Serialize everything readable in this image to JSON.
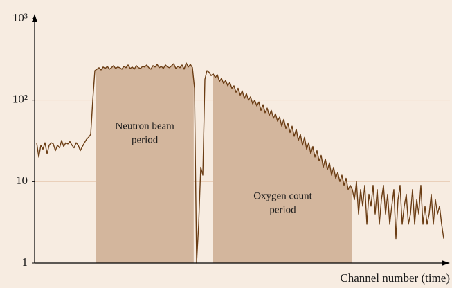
{
  "chart_data": {
    "type": "line",
    "x_label": "Channel number (time)",
    "xlim": [
      0,
      200
    ],
    "ylim": [
      1,
      1000
    ],
    "log_y": true,
    "grid": true,
    "yticks": [
      1,
      10,
      {
        "value": 100,
        "label": "10²"
      },
      {
        "value": 1000,
        "label": "10³"
      }
    ],
    "series": [
      {
        "color": "#6b3d14",
        "x": [
          1,
          2,
          3,
          4,
          5,
          6,
          7,
          8,
          9,
          10,
          11,
          12,
          13,
          14,
          15,
          16,
          17,
          18,
          19,
          20,
          21,
          22,
          23,
          24,
          25,
          26,
          27,
          28,
          29,
          30,
          31,
          32,
          33,
          34,
          35,
          36,
          37,
          38,
          39,
          40,
          41,
          42,
          43,
          44,
          45,
          46,
          47,
          48,
          49,
          50,
          51,
          52,
          53,
          54,
          55,
          56,
          57,
          58,
          59,
          60,
          61,
          62,
          63,
          64,
          65,
          66,
          67,
          68,
          69,
          70,
          71,
          72,
          73,
          74,
          75,
          76,
          77,
          78,
          79,
          80,
          81,
          82,
          83,
          84,
          85,
          86,
          87,
          88,
          89,
          90,
          91,
          92,
          93,
          94,
          95,
          96,
          97,
          98,
          99,
          100,
          101,
          102,
          103,
          104,
          105,
          106,
          107,
          108,
          109,
          110,
          111,
          112,
          113,
          114,
          115,
          116,
          117,
          118,
          119,
          120,
          121,
          122,
          123,
          124,
          125,
          126,
          127,
          128,
          129,
          130,
          131,
          132,
          133,
          134,
          135,
          136,
          137,
          138,
          139,
          140,
          141,
          142,
          143,
          144,
          145,
          146,
          147,
          148,
          149,
          150,
          151,
          152,
          153,
          154,
          155,
          156,
          157,
          158,
          159,
          160,
          161,
          162,
          163,
          164,
          165,
          166,
          167,
          168,
          169,
          170,
          171,
          172,
          173,
          174,
          175,
          176,
          177,
          178,
          179,
          180,
          181,
          182,
          183,
          184,
          185,
          186,
          187,
          188,
          189,
          190,
          191,
          192,
          193,
          194,
          195,
          196,
          197
        ],
        "values": [
          30,
          20,
          28,
          25,
          30,
          22,
          28,
          30,
          29,
          24,
          28,
          26,
          32,
          27,
          30,
          29,
          31,
          28,
          26,
          30,
          28,
          24,
          27,
          30,
          33,
          35,
          38,
          100,
          230,
          240,
          250,
          235,
          255,
          245,
          260,
          240,
          250,
          265,
          245,
          255,
          250,
          240,
          260,
          250,
          270,
          245,
          255,
          240,
          265,
          250,
          245,
          260,
          255,
          270,
          250,
          240,
          265,
          255,
          275,
          250,
          260,
          245,
          270,
          255,
          250,
          265,
          280,
          245,
          260,
          250,
          270,
          240,
          285,
          255,
          275,
          250,
          140,
          1,
          3,
          15,
          12,
          180,
          230,
          220,
          200,
          210,
          190,
          205,
          170,
          185,
          160,
          175,
          150,
          165,
          140,
          150,
          125,
          140,
          115,
          130,
          105,
          120,
          100,
          110,
          90,
          100,
          85,
          95,
          75,
          88,
          70,
          80,
          65,
          75,
          60,
          68,
          55,
          62,
          48,
          58,
          45,
          52,
          40,
          48,
          36,
          44,
          32,
          38,
          28,
          35,
          25,
          30,
          22,
          27,
          20,
          24,
          18,
          21,
          15,
          19,
          14,
          17,
          12,
          15,
          11,
          13,
          10,
          12,
          9,
          11,
          8,
          9,
          8,
          6,
          10,
          4,
          8,
          5,
          9,
          3,
          7,
          5,
          9,
          4,
          8,
          3,
          6,
          9,
          4,
          7,
          3,
          5,
          8,
          2,
          6,
          9,
          3,
          5,
          7,
          3,
          4,
          8,
          3,
          6,
          4,
          9,
          3,
          5,
          3,
          4,
          7,
          3,
          6,
          4,
          5,
          3,
          2
        ]
      }
    ],
    "regions": [
      {
        "xrange": [
          29.5,
          76.6
        ],
        "color": "#d3b69d",
        "label": [
          "Neutron beam",
          "period"
        ]
      },
      {
        "xrange": [
          86,
          153
        ],
        "color": "#d3b69d",
        "label": [
          "Oxygen count",
          "period"
        ]
      }
    ]
  }
}
